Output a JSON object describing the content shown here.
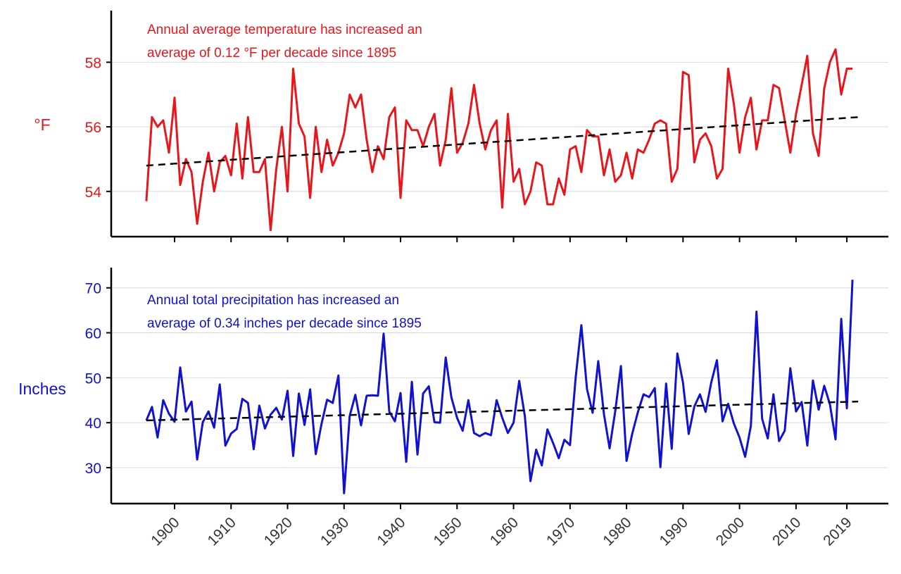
{
  "chart_data": [
    {
      "type": "line",
      "ylabel": "°F",
      "annotation": [
        "Annual average temperature has increased an",
        "average of 0.12 °F per decade since 1895"
      ],
      "color": "#e8161b",
      "ylim": [
        52.6,
        59.6
      ],
      "yticks": [
        54,
        56,
        58
      ],
      "xlim": [
        1884,
        1232
      ],
      "xticks": [
        1900,
        1910,
        1920,
        1930,
        1940,
        1950,
        1960,
        1970,
        1980,
        1990,
        2000,
        2010,
        2019
      ],
      "grid": true,
      "x_start": 1895,
      "x_end": 2021,
      "values": [
        53.7,
        56.3,
        56.0,
        56.2,
        55.2,
        56.9,
        54.2,
        55.0,
        54.6,
        53.0,
        54.3,
        55.2,
        54.0,
        54.9,
        55.1,
        54.5,
        56.1,
        54.4,
        56.3,
        54.6,
        54.6,
        55.0,
        52.8,
        54.7,
        56.0,
        54.0,
        57.8,
        56.1,
        55.7,
        53.8,
        56.0,
        54.6,
        55.6,
        54.8,
        55.2,
        55.8,
        57.0,
        56.6,
        57.0,
        55.6,
        54.6,
        55.4,
        55.0,
        56.3,
        56.6,
        53.8,
        56.2,
        55.9,
        55.9,
        55.4,
        56.0,
        56.4,
        54.8,
        55.6,
        57.2,
        55.2,
        55.5,
        56.1,
        57.3,
        56.1,
        55.3,
        55.9,
        56.2,
        53.5,
        56.4,
        54.3,
        54.7,
        53.6,
        54.0,
        54.9,
        54.8,
        53.6,
        53.6,
        54.4,
        53.9,
        55.3,
        55.4,
        54.6,
        55.9,
        55.7,
        55.7,
        54.5,
        55.3,
        54.3,
        54.5,
        55.2,
        54.4,
        55.3,
        55.2,
        55.6,
        56.1,
        56.2,
        56.1,
        54.3,
        54.7,
        57.7,
        57.6,
        54.9,
        55.6,
        55.8,
        55.4,
        54.4,
        54.7,
        57.8,
        56.7,
        55.2,
        56.3,
        56.9,
        55.3,
        56.2,
        56.2,
        57.3,
        57.2,
        56.2,
        55.2,
        56.4,
        57.3,
        58.2,
        55.8,
        55.1,
        57.2,
        58.0,
        58.4,
        57.0,
        57.8,
        57.8
      ],
      "trend": [
        54.8,
        56.3
      ]
    },
    {
      "type": "line",
      "ylabel": "Inches",
      "annotation": [
        "Annual total precipitation has increased an",
        "average of 0.34 inches per decade since 1895"
      ],
      "color": "#1111d0",
      "ylim": [
        22,
        74.5
      ],
      "yticks": [
        30,
        40,
        50,
        60,
        70
      ],
      "grid": true,
      "x_start": 1895,
      "x_end": 2021,
      "values": [
        40.5,
        43.5,
        36.7,
        45.0,
        42.0,
        40.2,
        52.3,
        42.5,
        44.7,
        31.8,
        40.1,
        42.5,
        38.9,
        48.5,
        34.9,
        37.6,
        38.6,
        45.3,
        44.4,
        34.1,
        43.8,
        38.7,
        41.8,
        43.3,
        40.7,
        47.1,
        32.6,
        46.5,
        39.5,
        47.4,
        33.0,
        39.7,
        45.1,
        44.4,
        50.5,
        24.3,
        41.5,
        46.2,
        39.4,
        46.0,
        46.1,
        46.0,
        59.8,
        42.5,
        40.3,
        46.6,
        31.3,
        49.1,
        32.9,
        46.5,
        48.1,
        40.1,
        40.0,
        54.5,
        45.6,
        41.1,
        38.2,
        45.0,
        37.7,
        37.0,
        37.7,
        37.2,
        45.0,
        41.1,
        37.7,
        40.0,
        49.3,
        41.5,
        27.0,
        34.0,
        30.5,
        38.5,
        35.5,
        32.1,
        36.2,
        35.0,
        50.0,
        61.7,
        47.5,
        42.2,
        53.7,
        41.9,
        34.3,
        42.5,
        52.6,
        31.5,
        37.5,
        42.3,
        46.3,
        45.7,
        47.7,
        30.1,
        48.7,
        34.2,
        55.4,
        48.9,
        37.5,
        43.6,
        46.3,
        42.4,
        49.0,
        53.9,
        40.3,
        44.2,
        39.8,
        36.7,
        32.4,
        39.3,
        64.7,
        40.9,
        36.5,
        46.3,
        35.9,
        38.2,
        52.1,
        42.5,
        44.6,
        34.9,
        49.4,
        42.9,
        48.2,
        44.1,
        36.3,
        63.1,
        43.2,
        71.8
      ],
      "trend": [
        40.5,
        44.7
      ]
    }
  ]
}
